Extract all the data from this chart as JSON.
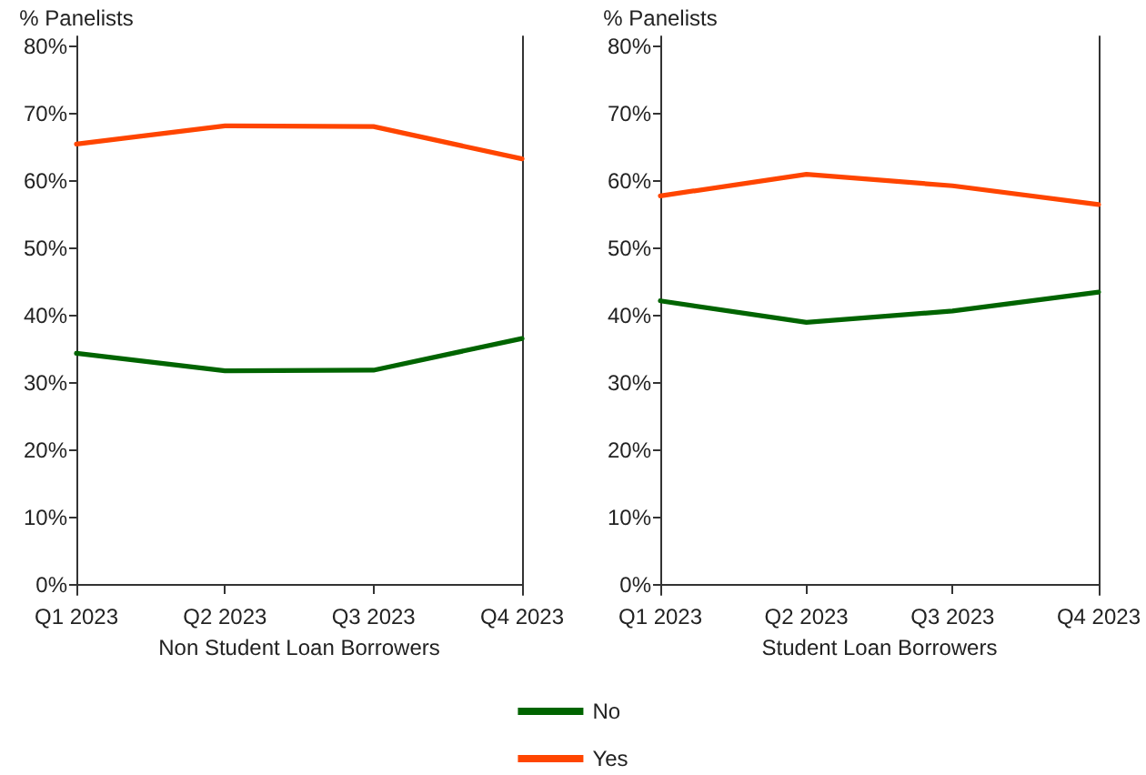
{
  "chart_data": [
    {
      "type": "line",
      "ylabel": "% Panelists",
      "xlabel": "Non Student Loan Borrowers",
      "categories": [
        "Q1 2023",
        "Q2 2023",
        "Q3 2023",
        "Q4 2023"
      ],
      "series": [
        {
          "name": "No",
          "color": "#006400",
          "values": [
            34.4,
            31.8,
            31.9,
            36.6
          ]
        },
        {
          "name": "Yes",
          "color": "#ff4500",
          "values": [
            65.5,
            68.2,
            68.1,
            63.3
          ]
        }
      ],
      "ylim": [
        -1.5,
        81.5
      ],
      "yticks": [
        {
          "value": 0,
          "label": "0%"
        },
        {
          "value": 10,
          "label": "10%"
        },
        {
          "value": 20,
          "label": "20%"
        },
        {
          "value": 30,
          "label": "30%"
        },
        {
          "value": 40,
          "label": "40%"
        },
        {
          "value": 50,
          "label": "50%"
        },
        {
          "value": 60,
          "label": "60%"
        },
        {
          "value": 70,
          "label": "70%"
        },
        {
          "value": 80,
          "label": "80%"
        }
      ],
      "grid": false,
      "legend": "bottom",
      "marker": "none",
      "line_style": "solid"
    },
    {
      "type": "line",
      "ylabel": "% Panelists",
      "xlabel": "Student Loan Borrowers",
      "categories": [
        "Q1 2023",
        "Q2 2023",
        "Q3 2023",
        "Q4 2023"
      ],
      "series": [
        {
          "name": "No",
          "color": "#006400",
          "values": [
            42.2,
            39.0,
            40.7,
            43.5
          ]
        },
        {
          "name": "Yes",
          "color": "#ff4500",
          "values": [
            57.8,
            61.0,
            59.3,
            56.5
          ]
        }
      ],
      "ylim": [
        -1.5,
        81.5
      ],
      "yticks": [
        {
          "value": 0,
          "label": "0%"
        },
        {
          "value": 10,
          "label": "10%"
        },
        {
          "value": 20,
          "label": "20%"
        },
        {
          "value": 30,
          "label": "30%"
        },
        {
          "value": 40,
          "label": "40%"
        },
        {
          "value": 50,
          "label": "50%"
        },
        {
          "value": 60,
          "label": "60%"
        },
        {
          "value": 70,
          "label": "70%"
        },
        {
          "value": 80,
          "label": "80%"
        }
      ],
      "grid": false,
      "legend": "bottom",
      "marker": "none",
      "line_style": "solid"
    }
  ]
}
